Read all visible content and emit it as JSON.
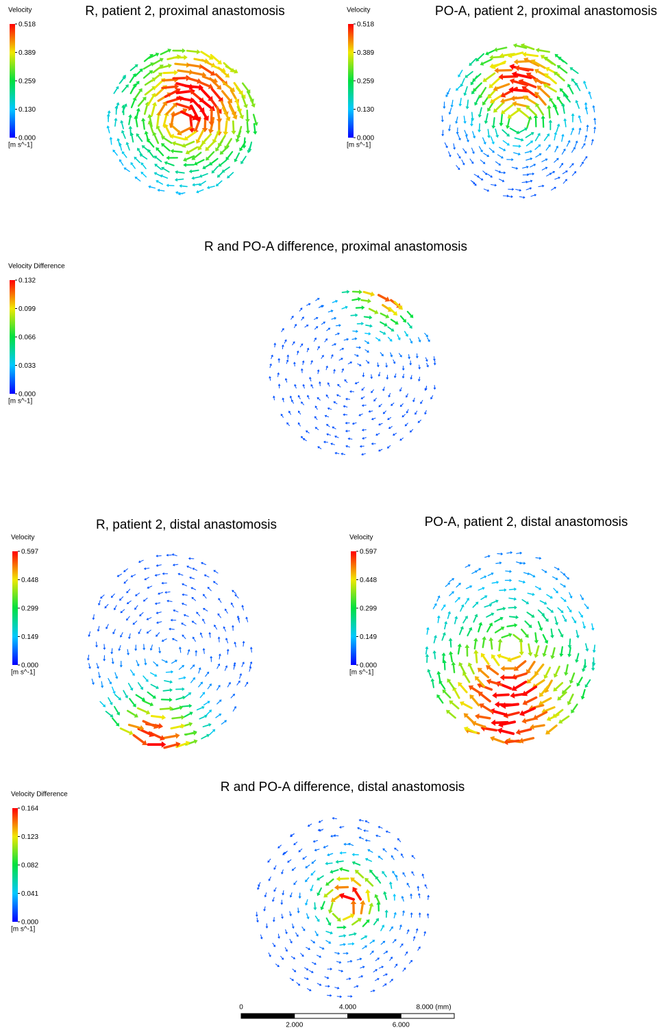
{
  "panels": [
    {
      "title": "R, patient 2, proximal anastomosis",
      "legend": {
        "title": "Velocity",
        "ticks": [
          "0.518",
          "0.389",
          "0.259",
          "0.130",
          "0.000"
        ],
        "unit": "[m s^-1]"
      }
    },
    {
      "title": "PO-A, patient 2, proximal anastomosis",
      "legend": {
        "title": "Velocity",
        "ticks": [
          "0.518",
          "0.389",
          "0.259",
          "0.130",
          "0.000"
        ],
        "unit": "[m s^-1]"
      }
    },
    {
      "title": "R and PO-A difference, proximal anastomosis",
      "legend": {
        "title": "Velocity Difference",
        "ticks": [
          "0.132",
          "0.099",
          "0.066",
          "0.033",
          "0.000"
        ],
        "unit": "[m s^-1]"
      }
    },
    {
      "title": "R, patient 2, distal anastomosis",
      "legend": {
        "title": "Velocity",
        "ticks": [
          "0.597",
          "0.448",
          "0.299",
          "0.149",
          "0.000"
        ],
        "unit": "[m s^-1]"
      }
    },
    {
      "title": "PO-A, patient 2, distal anastomosis",
      "legend": {
        "title": "Velocity",
        "ticks": [
          "0.597",
          "0.448",
          "0.299",
          "0.149",
          "0.000"
        ],
        "unit": "[m s^-1]"
      }
    },
    {
      "title": "R and PO-A difference, distal anastomosis",
      "legend": {
        "title": "Velocity Difference",
        "ticks": [
          "0.164",
          "0.123",
          "0.082",
          "0.041",
          "0.000"
        ],
        "unit": "[m s^-1]"
      }
    }
  ],
  "scale_bar": {
    "top_labels": [
      "0",
      "4.000",
      "8.000 (mm)"
    ],
    "bottom_labels": [
      "2.000",
      "6.000"
    ]
  }
}
